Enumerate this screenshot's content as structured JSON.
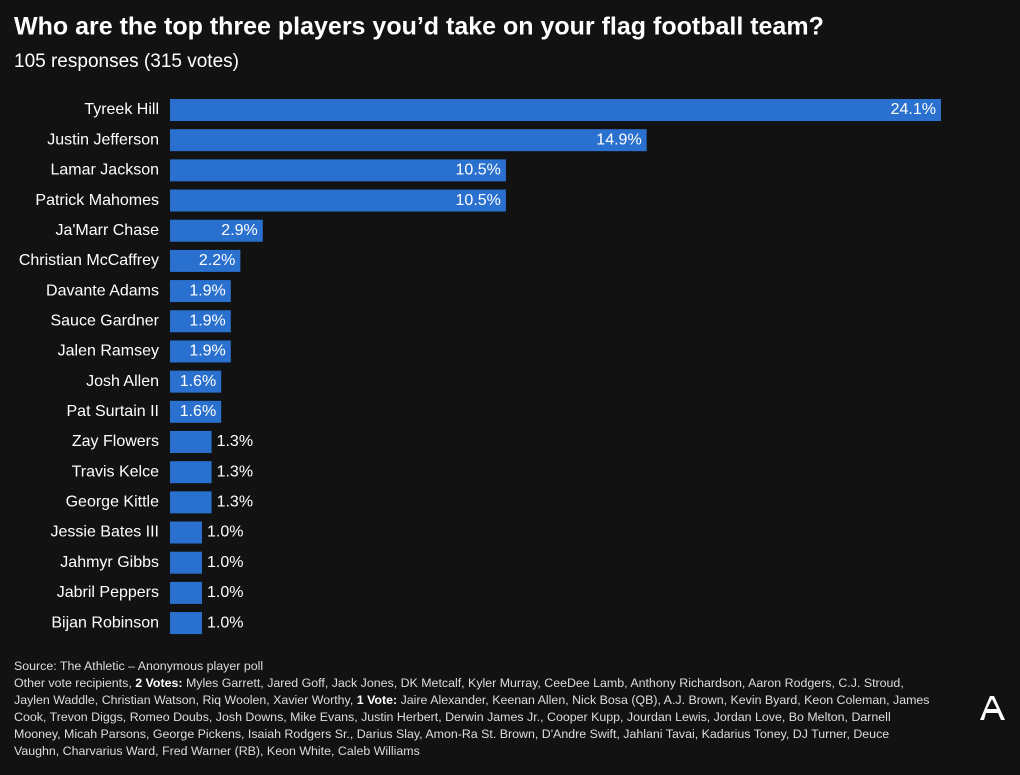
{
  "chart_data": {
    "type": "bar",
    "orientation": "horizontal",
    "title": "Who are the top three players you’d take on your flag football team?",
    "subtitle": "105 responses (315 votes)",
    "categories": [
      "Tyreek Hill",
      "Justin Jefferson",
      "Lamar Jackson",
      "Patrick Mahomes",
      "Ja'Marr Chase",
      "Christian McCaffrey",
      "Davante Adams",
      "Sauce Gardner",
      "Jalen Ramsey",
      "Josh Allen",
      "Pat Surtain II",
      "Zay Flowers",
      "Travis Kelce",
      "George Kittle",
      "Jessie Bates III",
      "Jahmyr Gibbs",
      "Jabril Peppers",
      "Bijan Robinson"
    ],
    "values": [
      24.1,
      14.9,
      10.5,
      10.5,
      2.9,
      2.2,
      1.9,
      1.9,
      1.9,
      1.6,
      1.6,
      1.3,
      1.3,
      1.3,
      1.0,
      1.0,
      1.0,
      1.0
    ],
    "value_labels": [
      "24.1%",
      "14.9%",
      "10.5%",
      "10.5%",
      "2.9%",
      "2.2%",
      "1.9%",
      "1.9%",
      "1.9%",
      "1.6%",
      "1.6%",
      "1.3%",
      "1.3%",
      "1.3%",
      "1.0%",
      "1.0%",
      "1.0%",
      "1.0%"
    ],
    "color": "#2a70cf"
  },
  "notes": {
    "source": "Source: The Athletic – Anonymous player poll",
    "other_lead": "Other vote recipients,",
    "two_votes_label": "2 Votes:",
    "two_votes_names": "Myles Garrett, Jared Goff, Jack Jones, DK Metcalf, Kyler Murray, CeeDee Lamb, Anthony Richardson, Aaron Rodgers, C.J. Stroud, Jaylen Waddle, Christian Watson, Riq Woolen, Xavier Worthy,",
    "one_vote_label": "1 Vote:",
    "one_vote_names": "Jaire Alexander, Keenan Allen, Nick Bosa (QB), A.J. Brown, Kevin Byard, Keon Coleman, James Cook, Trevon Diggs, Romeo Doubs, Josh Downs, Mike Evans, Justin Herbert, Derwin James Jr., Cooper Kupp, Jourdan Lewis, Jordan Love, Bo Melton, Darnell Mooney, Micah Parsons, George Pickens, Isaiah Rodgers Sr., Darius Slay, Amon-Ra St. Brown, D'Andre Swift, Jahlani Tavai, Kadarius Toney, DJ Turner, Deuce Vaughn, Charvarius Ward, Fred Warner (RB), Keon White, Caleb Williams"
  }
}
